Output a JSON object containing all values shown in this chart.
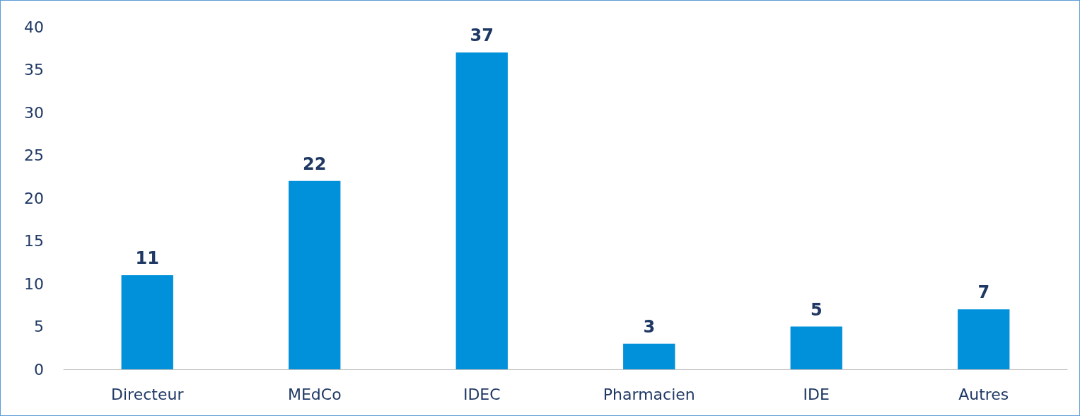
{
  "chart_data": {
    "type": "bar",
    "categories": [
      "Directeur",
      "MEdCo",
      "IDEC",
      "Pharmacien",
      "IDE",
      "Autres"
    ],
    "values": [
      11,
      22,
      37,
      3,
      5,
      7
    ],
    "color": "#0091da",
    "ylim": [
      0,
      40
    ],
    "yticks": [
      0,
      5,
      10,
      15,
      20,
      25,
      30,
      35,
      40
    ],
    "grid": false,
    "data_labels": true
  }
}
